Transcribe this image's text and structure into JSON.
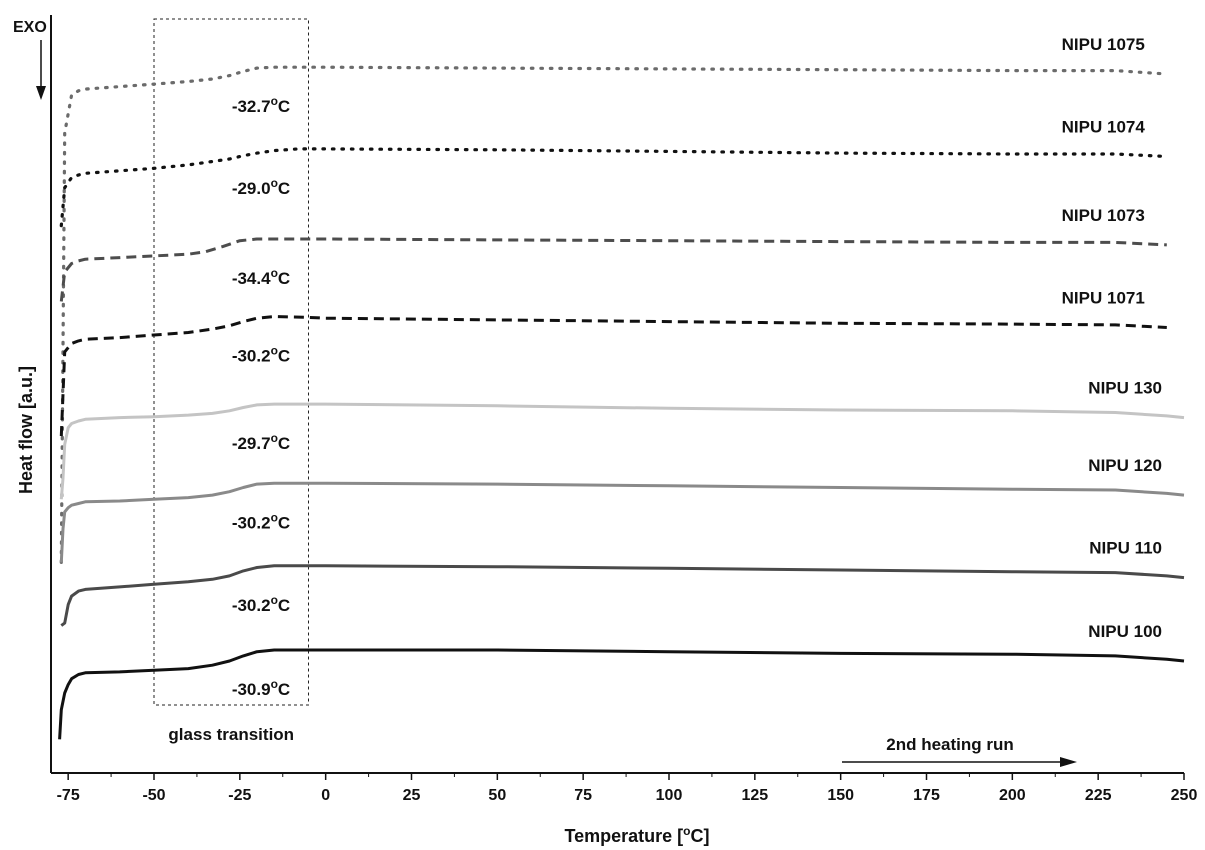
{
  "chart_data": {
    "type": "line",
    "title": "",
    "xlabel": "Temperature [°C]",
    "ylabel": "Heat flow [a.u.]",
    "xlim": [
      -80,
      250
    ],
    "xticks": [
      -75,
      -50,
      -25,
      0,
      25,
      50,
      75,
      100,
      125,
      150,
      175,
      200,
      225,
      250
    ],
    "y_units": "arbitrary (stacked, offset curves)",
    "exo_label": "EXO",
    "direction_annotation": "2nd heating run",
    "region_annotation": {
      "label": "glass transition",
      "x_range": [
        -50,
        -5
      ]
    },
    "grid": false,
    "series": [
      {
        "name": "NIPU 1075",
        "tg_label": "-32.7°C",
        "line_style": "dotted",
        "color": "#6b6b6b",
        "x": [
          -77,
          -76,
          -74,
          -72,
          -70,
          -60,
          -50,
          -40,
          -33,
          -28,
          -24,
          -20,
          -15,
          0,
          50,
          100,
          150,
          200,
          230,
          245
        ],
        "y": [
          2.5,
          7.6,
          8.05,
          8.1,
          8.12,
          8.15,
          8.18,
          8.21,
          8.24,
          8.28,
          8.33,
          8.37,
          8.38,
          8.38,
          8.37,
          8.36,
          8.35,
          8.34,
          8.34,
          8.3
        ]
      },
      {
        "name": "NIPU 1074",
        "tg_label": "-29.0°C",
        "line_style": "dotted",
        "color": "#111111",
        "x": [
          -77,
          -76,
          -74,
          -72,
          -70,
          -60,
          -50,
          -40,
          -33,
          -28,
          -24,
          -20,
          -15,
          -8,
          0,
          50,
          100,
          150,
          200,
          230,
          245
        ],
        "y": [
          6.5,
          6.95,
          7.07,
          7.1,
          7.12,
          7.15,
          7.18,
          7.22,
          7.26,
          7.29,
          7.33,
          7.36,
          7.39,
          7.41,
          7.41,
          7.4,
          7.38,
          7.36,
          7.35,
          7.35,
          7.32
        ]
      },
      {
        "name": "NIPU 1073",
        "tg_label": "-34.4°C",
        "line_style": "dashed",
        "color": "#4d4d4d",
        "x": [
          -77,
          -76,
          -74,
          -72,
          -70,
          -60,
          -50,
          -40,
          -35,
          -30,
          -25,
          -20,
          0,
          50,
          100,
          150,
          200,
          230,
          245
        ],
        "y": [
          5.6,
          5.95,
          6.05,
          6.08,
          6.1,
          6.12,
          6.14,
          6.16,
          6.19,
          6.25,
          6.32,
          6.34,
          6.34,
          6.33,
          6.32,
          6.31,
          6.3,
          6.3,
          6.27
        ]
      },
      {
        "name": "NIPU 1071",
        "tg_label": "-30.2°C",
        "line_style": "dashed",
        "color": "#111111",
        "x": [
          -77,
          -76.5,
          -76,
          -74,
          -72,
          -70,
          -60,
          -50,
          -40,
          -33,
          -28,
          -24,
          -20,
          -15,
          -5,
          0,
          50,
          100,
          150,
          200,
          230,
          245
        ],
        "y": [
          4.0,
          4.5,
          5.0,
          5.1,
          5.13,
          5.15,
          5.17,
          5.2,
          5.23,
          5.27,
          5.31,
          5.36,
          5.4,
          5.42,
          5.41,
          5.4,
          5.38,
          5.36,
          5.34,
          5.33,
          5.32,
          5.29
        ]
      },
      {
        "name": "NIPU 130",
        "tg_label": "-29.7°C",
        "line_style": "solid",
        "color": "#c4c4c4",
        "x": [
          -77,
          -76.5,
          -76,
          -75,
          -74,
          -72,
          -70,
          -60,
          -50,
          -40,
          -33,
          -28,
          -24,
          -20,
          -15,
          0,
          50,
          100,
          150,
          200,
          230,
          245,
          250
        ],
        "y": [
          3.25,
          3.5,
          3.9,
          4.1,
          4.15,
          4.18,
          4.2,
          4.22,
          4.23,
          4.25,
          4.27,
          4.3,
          4.34,
          4.37,
          4.38,
          4.38,
          4.36,
          4.33,
          4.31,
          4.3,
          4.28,
          4.24,
          4.22
        ]
      },
      {
        "name": "NIPU 120",
        "tg_label": "-30.2°C",
        "line_style": "solid",
        "color": "#8a8a8a",
        "x": [
          -77,
          -76.5,
          -76,
          -75,
          -74,
          -72,
          -70,
          -60,
          -50,
          -40,
          -33,
          -28,
          -24,
          -20,
          -15,
          0,
          50,
          100,
          150,
          200,
          230,
          245,
          250
        ],
        "y": [
          2.5,
          2.9,
          3.1,
          3.15,
          3.18,
          3.2,
          3.22,
          3.23,
          3.25,
          3.27,
          3.3,
          3.34,
          3.39,
          3.43,
          3.44,
          3.44,
          3.43,
          3.41,
          3.39,
          3.37,
          3.36,
          3.32,
          3.3
        ]
      },
      {
        "name": "NIPU 110",
        "tg_label": "-30.2°C",
        "line_style": "solid",
        "color": "#4a4a4a",
        "x": [
          -77,
          -76,
          -75,
          -74,
          -72,
          -70,
          -60,
          -50,
          -40,
          -33,
          -28,
          -24,
          -20,
          -15,
          0,
          50,
          100,
          150,
          200,
          230,
          245,
          250
        ],
        "y": [
          1.75,
          1.78,
          2.0,
          2.1,
          2.16,
          2.18,
          2.21,
          2.24,
          2.27,
          2.3,
          2.34,
          2.4,
          2.44,
          2.46,
          2.46,
          2.45,
          2.43,
          2.41,
          2.39,
          2.38,
          2.34,
          2.32
        ]
      },
      {
        "name": "NIPU 100",
        "tg_label": "-30.9°C",
        "line_style": "solid",
        "color": "#111111",
        "x": [
          -77.5,
          -77,
          -76,
          -75,
          -74,
          -72,
          -70,
          -60,
          -50,
          -40,
          -33,
          -28,
          -24,
          -20,
          -15,
          0,
          50,
          100,
          150,
          200,
          230,
          245,
          250
        ],
        "y": [
          0.4,
          0.75,
          0.95,
          1.05,
          1.12,
          1.17,
          1.19,
          1.2,
          1.22,
          1.24,
          1.28,
          1.33,
          1.39,
          1.44,
          1.46,
          1.46,
          1.46,
          1.44,
          1.42,
          1.41,
          1.39,
          1.35,
          1.33
        ]
      }
    ]
  }
}
